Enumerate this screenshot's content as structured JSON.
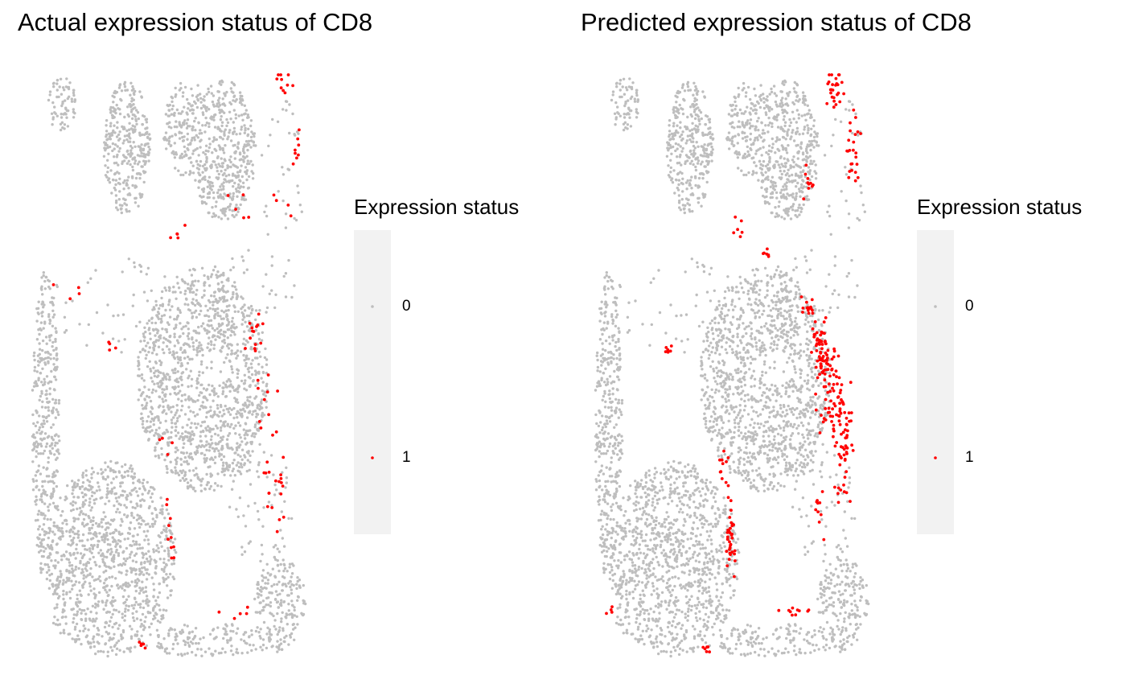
{
  "chart_data": [
    {
      "type": "scatter",
      "title": "Actual expression status of CD8",
      "xlabel": "",
      "ylabel": "",
      "grid": false,
      "axes": "none",
      "legend": {
        "title": "Expression status",
        "position": "right",
        "entries": [
          {
            "label": "0",
            "color": "#bebebe"
          },
          {
            "label": "1",
            "color": "#ff0000"
          }
        ]
      },
      "series": [
        {
          "name": "0",
          "color": "#bebebe",
          "approx_count": 4500
        },
        {
          "name": "1",
          "color": "#ff0000",
          "approx_count": 110
        }
      ]
    },
    {
      "type": "scatter",
      "title": "Predicted expression status of CD8",
      "xlabel": "",
      "ylabel": "",
      "grid": false,
      "axes": "none",
      "legend": {
        "title": "Expression status",
        "position": "right",
        "entries": [
          {
            "label": "0",
            "color": "#bebebe"
          },
          {
            "label": "1",
            "color": "#ff0000"
          }
        ]
      },
      "series": [
        {
          "name": "0",
          "color": "#bebebe",
          "approx_count": 4400
        },
        {
          "name": "1",
          "color": "#ff0000",
          "approx_count": 330
        }
      ]
    }
  ],
  "panels": [
    {
      "title": "Actual expression status of CD8",
      "legend_title": "Expression status",
      "legend_labels": [
        "0",
        "1"
      ]
    },
    {
      "title": "Predicted expression status of CD8",
      "legend_title": "Expression status",
      "legend_labels": [
        "0",
        "1"
      ]
    }
  ],
  "colors": {
    "negative": "#bebebe",
    "positive": "#ff0000",
    "legend_key_bg": "#f2f2f2"
  }
}
